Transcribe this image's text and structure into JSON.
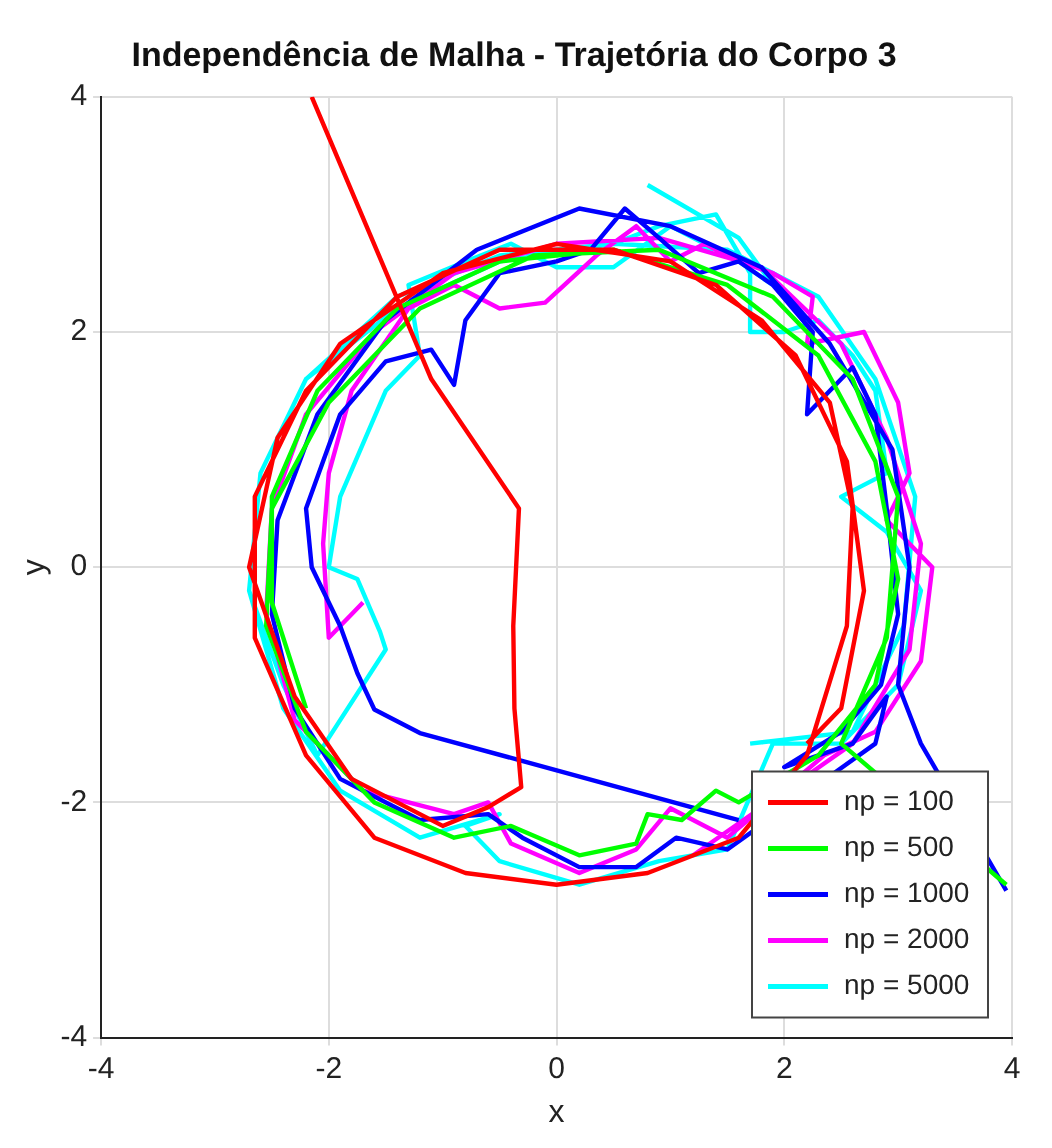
{
  "chart_data": {
    "type": "line",
    "title": "Independência de Malha - Trajetória do Corpo 3",
    "xlabel": "x",
    "ylabel": "y",
    "xlim": [
      -4,
      4
    ],
    "ylim": [
      -4,
      4
    ],
    "xticks": [
      -4,
      -2,
      0,
      2,
      4
    ],
    "yticks": [
      -4,
      -2,
      0,
      2,
      4
    ],
    "grid": true,
    "legend": "bottom right",
    "line_style": "solid",
    "marker": "none",
    "series": [
      {
        "name": "np = 100",
        "color": "#ff0000",
        "x": [
          -2.15,
          -1.1,
          -0.33,
          -0.38,
          -0.37,
          -0.31,
          -0.6,
          -1.0,
          -1.8,
          -2.3,
          -2.7,
          -2.45,
          -1.9,
          -1.0,
          0,
          1.0,
          1.8,
          2.4,
          2.6,
          2.55,
          2.2,
          1.6,
          0.8,
          0,
          -0.8,
          -1.6,
          -2.2,
          -2.65,
          -2.65,
          -2.2,
          -1.4,
          -0.5,
          0.5,
          1.4,
          2.1,
          2.55,
          2.7,
          2.5,
          2.2
        ],
        "values": [
          4,
          1.6,
          0.5,
          -0.5,
          -1.2,
          -1.87,
          -2.04,
          -2.2,
          -1.8,
          -1.1,
          0,
          1.1,
          1.9,
          2.5,
          2.75,
          2.6,
          2.1,
          1.4,
          0.5,
          -0.5,
          -1.6,
          -2.3,
          -2.6,
          -2.7,
          -2.6,
          -2.3,
          -1.6,
          -0.6,
          0.6,
          1.5,
          2.3,
          2.7,
          2.7,
          2.4,
          1.8,
          0.9,
          -0.2,
          -1.2,
          -1.5
        ]
      },
      {
        "name": "np = 500",
        "color": "#00ff00",
        "x": [
          -2.2,
          -2.5,
          -2.5,
          -2.1,
          -1.4,
          -0.5,
          0.5,
          1.5,
          2.3,
          2.8,
          3.0,
          2.8,
          2.3,
          1.6,
          1.4,
          1.1,
          0.8,
          0.7,
          0.2,
          -0.4,
          -0.9,
          -1.6,
          -2.2,
          -2.55,
          -2.5,
          -2.0,
          -1.2,
          -0.2,
          0.9,
          1.9,
          2.6,
          3.0,
          2.9,
          2.5,
          3.95
        ],
        "values": [
          -1.2,
          -0.3,
          0.6,
          1.5,
          2.2,
          2.6,
          2.7,
          2.4,
          1.8,
          0.9,
          -0.1,
          -1.0,
          -1.6,
          -2.0,
          -1.9,
          -2.15,
          -2.1,
          -2.35,
          -2.45,
          -2.2,
          -2.3,
          -2.0,
          -1.4,
          -0.5,
          0.5,
          1.4,
          2.2,
          2.65,
          2.7,
          2.3,
          1.6,
          0.6,
          -0.6,
          -1.5,
          -2.7
        ]
      },
      {
        "name": "np = 1000",
        "color": "#0000ff",
        "x": [
          1.6,
          -1.2,
          -1.6,
          -1.75,
          -1.9,
          -2.0,
          -2.15,
          -2.2,
          -2.05,
          -1.9,
          -1.5,
          -1.1,
          -0.9,
          -0.8,
          -0.5,
          0,
          0.3,
          0.6,
          0.9,
          1.25,
          1.6,
          1.9,
          2.25,
          2.2,
          2.6,
          2.8,
          2.9,
          3.0,
          2.85,
          2.5,
          2.0,
          2.6,
          2.9,
          2.8,
          1.5,
          1.05,
          0.7,
          0.2,
          -0.3,
          -0.6,
          -1.2,
          -1.9,
          -2.3,
          -2.5,
          -2.45,
          -2.1,
          -1.5,
          -0.7,
          0.2,
          1.0,
          1.8,
          2.4,
          2.95,
          3.1,
          3.0,
          3.2,
          3.95
        ],
        "values": [
          -2.15,
          -1.41,
          -1.21,
          -0.9,
          -0.5,
          -0.3,
          0,
          0.5,
          0.9,
          1.3,
          1.75,
          1.85,
          1.55,
          2.1,
          2.5,
          2.6,
          2.7,
          3.05,
          2.8,
          2.5,
          2.6,
          2.4,
          2.0,
          1.3,
          1.7,
          1.3,
          0.5,
          -0.4,
          -1.0,
          -1.4,
          -1.7,
          -1.5,
          -1.1,
          -1.5,
          -2.4,
          -2.3,
          -2.55,
          -2.55,
          -2.3,
          -2.1,
          -2.15,
          -1.8,
          -1.2,
          -0.4,
          0.4,
          1.3,
          2.1,
          2.7,
          3.05,
          2.9,
          2.55,
          1.9,
          1.0,
          0,
          -1.0,
          -1.5,
          -2.75
        ]
      },
      {
        "name": "np = 2000",
        "color": "#ff00ff",
        "x": [
          -1.7,
          -2.0,
          -2.05,
          -2.0,
          -1.8,
          -1.3,
          -0.9,
          -0.5,
          -0.1,
          0.35,
          0.7,
          1.0,
          1.3,
          1.6,
          1.9,
          2.25,
          2.2,
          2.7,
          3.0,
          3.1,
          2.9,
          3.3,
          3.2,
          2.8,
          2.35,
          1.5,
          1.0,
          0.7,
          0.2,
          -0.4,
          -0.6,
          -0.9,
          -1.7,
          -2.3,
          -2.55,
          -2.5,
          -2.2,
          -1.6,
          -0.9,
          0,
          0.9,
          1.8,
          2.5,
          2.9,
          3.2,
          3.1,
          2.6,
          1.2
        ],
        "values": [
          -0.3,
          -0.6,
          0.2,
          0.8,
          1.5,
          2.2,
          2.4,
          2.2,
          2.25,
          2.65,
          2.9,
          2.6,
          2.75,
          2.6,
          2.5,
          2.3,
          1.9,
          2.0,
          1.4,
          0.8,
          0.4,
          0,
          -0.8,
          -1.4,
          -1.6,
          -2.3,
          -2.05,
          -2.4,
          -2.6,
          -2.35,
          -2.0,
          -2.1,
          -1.9,
          -1.3,
          -0.4,
          0.5,
          1.3,
          2.0,
          2.5,
          2.75,
          2.8,
          2.55,
          1.9,
          1.1,
          0.2,
          -0.7,
          -1.5,
          -2.45
        ]
      },
      {
        "name": "np = 5000",
        "color": "#00ffff",
        "x": [
          0.8,
          1.6,
          1.9,
          1.6,
          1.0,
          0.5,
          0,
          -0.4,
          -0.8,
          -1.3,
          -1.2,
          -1.5,
          -1.9,
          -2.0,
          -1.75,
          -1.55,
          -1.5,
          -2.1,
          -2.4,
          -2.7,
          -2.6,
          -2.2,
          -1.4,
          -0.5,
          0.5,
          0.9,
          1.4,
          1.7,
          1.7,
          2.0,
          2.3,
          2.6,
          2.8,
          2.9,
          2.5,
          2.9,
          3.2,
          3.0,
          2.5,
          1.9,
          1.5,
          0.9,
          0.2,
          -0.5,
          -0.8,
          -0.5,
          -1.2,
          -1.9,
          -2.4,
          -2.7,
          -2.6,
          -2.2,
          -1.4,
          -0.5,
          0.5,
          1.5,
          2.3,
          2.8,
          3.15,
          3.05,
          2.6,
          1.7
        ],
        "values": [
          3.25,
          2.8,
          2.4,
          2.6,
          2.9,
          2.55,
          2.55,
          2.75,
          2.6,
          2.4,
          1.8,
          1.5,
          0.6,
          0,
          -0.1,
          -0.55,
          -0.7,
          -1.6,
          -1.0,
          -0.2,
          0.8,
          1.6,
          2.2,
          2.6,
          2.75,
          2.9,
          3.0,
          2.5,
          2.0,
          2.0,
          2.1,
          1.8,
          1.5,
          0.8,
          0.6,
          0.3,
          -0.2,
          -1.0,
          -1.5,
          -1.5,
          -2.4,
          -2.5,
          -2.7,
          -2.5,
          -2.2,
          -2.1,
          -2.3,
          -1.9,
          -1.2,
          -0.2,
          0.8,
          1.6,
          2.3,
          2.65,
          2.75,
          2.7,
          2.3,
          1.6,
          0.6,
          -0.5,
          -1.4,
          -1.5
        ]
      }
    ]
  }
}
